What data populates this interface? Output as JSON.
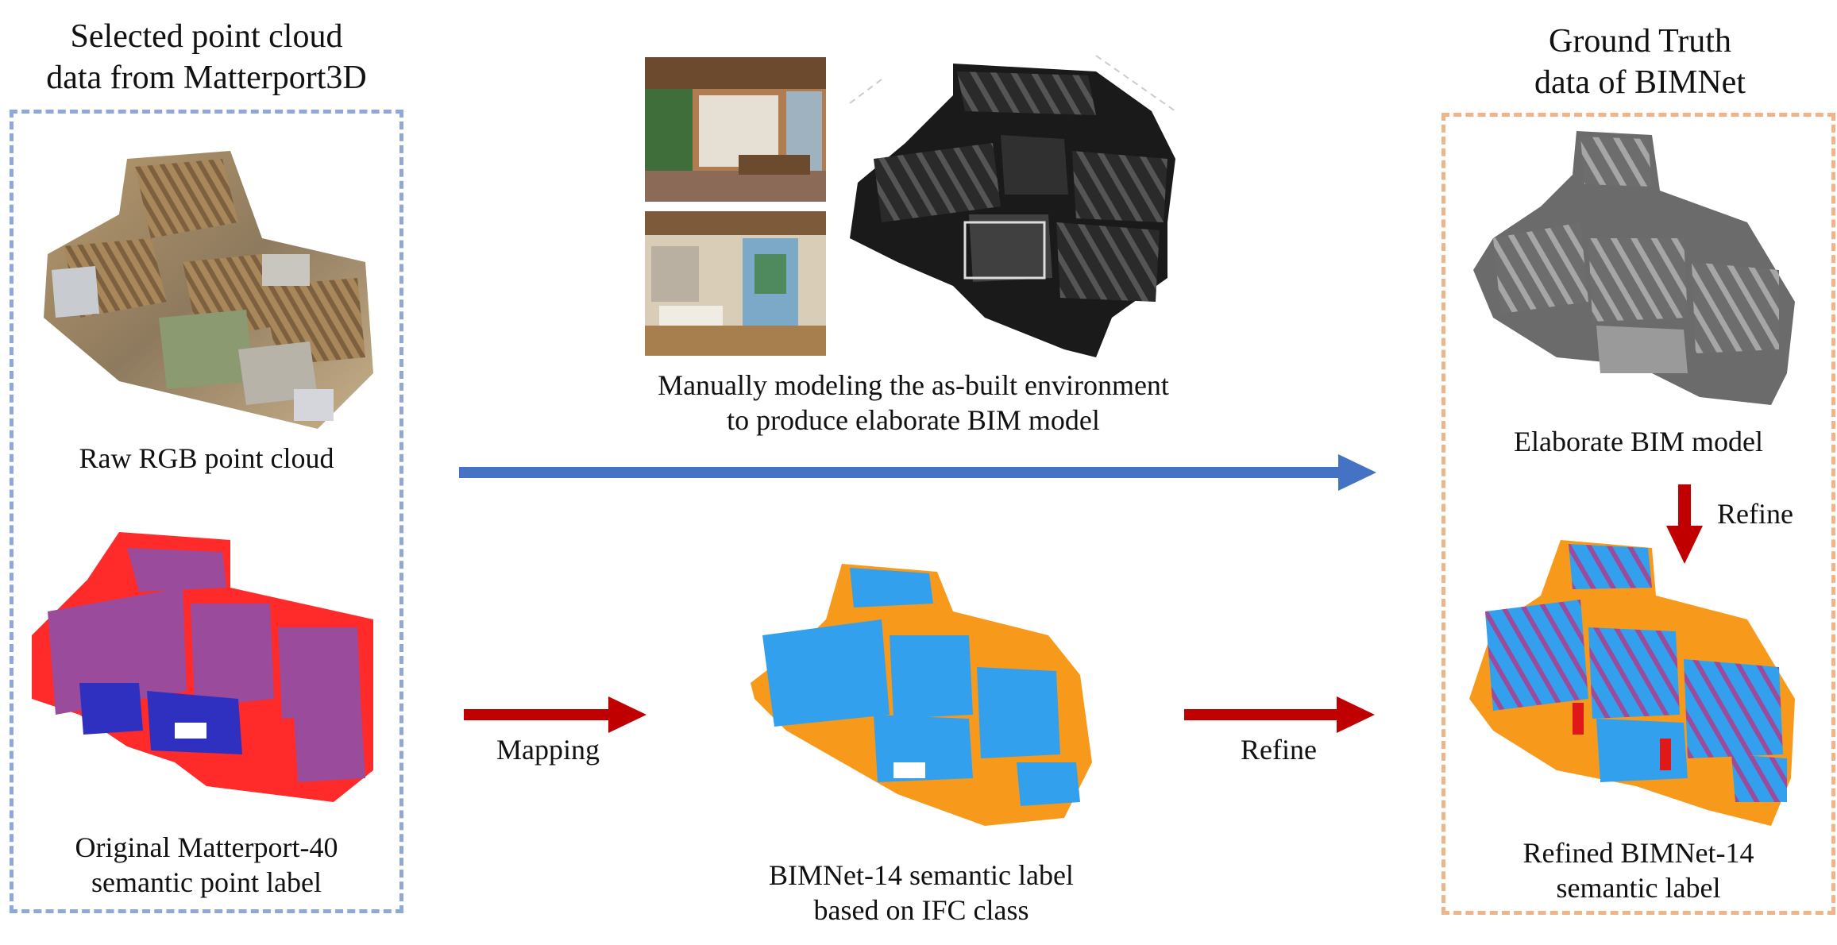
{
  "left_group": {
    "title": "Selected point cloud\ndata from Matterport3D",
    "raw_caption": "Raw RGB point cloud",
    "label_caption": "Original Matterport-40\nsemantic point label"
  },
  "middle": {
    "modeling_caption": "Manually modeling the as-built environment\nto produce elaborate BIM model",
    "mapping_label": "Mapping",
    "bimnet_caption": "BIMNet-14 semantic label\nbased on IFC class",
    "refine_label": "Refine"
  },
  "right_group": {
    "title": "Ground Truth\ndata of BIMNet",
    "bim_caption": "Elaborate BIM model",
    "refine_label": "Refine",
    "refined_caption": "Refined BIMNet-14\nsemantic label"
  },
  "colors": {
    "left_box": "#8fa8d8",
    "right_box": "#f0b48a",
    "blue_arrow": "#4472c4",
    "red_arrow": "#c00000",
    "label_blue": "#33a0ee",
    "label_orange": "#f79a1c",
    "m40_red": "#ff2a2a",
    "m40_purple": "#9b4b9b",
    "m40_blue": "#3030c0"
  }
}
